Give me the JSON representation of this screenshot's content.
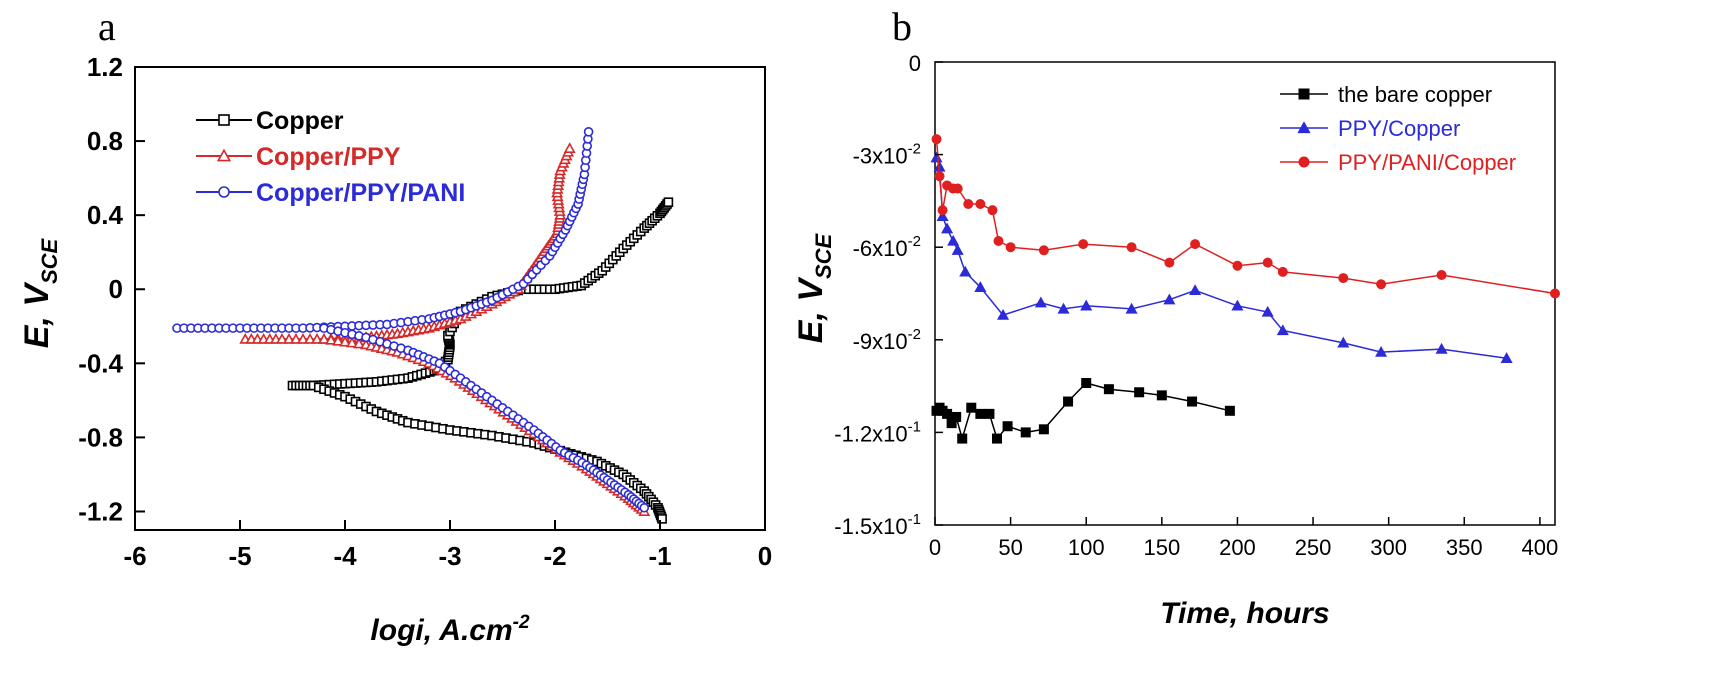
{
  "panels": {
    "a": {
      "letter": "a"
    },
    "b": {
      "letter": "b"
    }
  },
  "colors": {
    "copper": "#000000",
    "ppy": "#d42a2a",
    "pani": "#2b2bd8",
    "bare": "#000000",
    "ppy_b": "#2b2bd8",
    "pani_b": "#e02020"
  },
  "chart_data": [
    {
      "type": "line",
      "panel": "a",
      "title": "",
      "xlabel": {
        "main": "logi, A.cm",
        "sup": "-2"
      },
      "ylabel": {
        "main": "E, V",
        "sub": "SCE"
      },
      "xlim": [
        -6,
        0
      ],
      "ylim": [
        -1.3,
        1.2
      ],
      "x_ticks": [
        "-6",
        "-5",
        "-4",
        "-3",
        "-2",
        "-1",
        "0"
      ],
      "y_ticks": [
        "1.2",
        "0.8",
        "0.4",
        "0",
        "-0.4",
        "-0.8",
        "-1.2"
      ],
      "legend_position": "top-left",
      "series": [
        {
          "name": "Copper",
          "marker": "open-square",
          "branches": [
            [
              [
                -4.5,
                -0.52
              ],
              [
                -4.3,
                -0.52
              ],
              [
                -4.0,
                -0.51
              ],
              [
                -3.7,
                -0.5
              ],
              [
                -3.4,
                -0.48
              ],
              [
                -3.15,
                -0.44
              ],
              [
                -3.02,
                -0.38
              ],
              [
                -3.0,
                -0.3
              ],
              [
                -3.02,
                -0.25
              ],
              [
                -2.9,
                -0.12
              ],
              [
                -2.6,
                -0.04
              ],
              [
                -2.3,
                0.0
              ],
              [
                -2.0,
                0.0
              ],
              [
                -1.75,
                0.02
              ],
              [
                -1.55,
                0.1
              ],
              [
                -1.35,
                0.22
              ],
              [
                -1.15,
                0.33
              ],
              [
                -1.0,
                0.41
              ],
              [
                -0.92,
                0.47
              ]
            ],
            [
              [
                -4.3,
                -0.52
              ],
              [
                -4.0,
                -0.58
              ],
              [
                -3.7,
                -0.66
              ],
              [
                -3.4,
                -0.72
              ],
              [
                -3.0,
                -0.76
              ],
              [
                -2.6,
                -0.79
              ],
              [
                -2.2,
                -0.83
              ],
              [
                -1.9,
                -0.88
              ],
              [
                -1.6,
                -0.93
              ],
              [
                -1.35,
                -1.0
              ],
              [
                -1.15,
                -1.09
              ],
              [
                -1.02,
                -1.18
              ],
              [
                -0.98,
                -1.24
              ]
            ]
          ]
        },
        {
          "name": "Copper/PPY",
          "marker": "open-triangle",
          "branches": [
            [
              [
                -4.95,
                -0.27
              ],
              [
                -4.6,
                -0.27
              ],
              [
                -4.2,
                -0.27
              ],
              [
                -3.8,
                -0.26
              ],
              [
                -3.5,
                -0.24
              ],
              [
                -3.2,
                -0.21
              ],
              [
                -2.9,
                -0.16
              ],
              [
                -2.6,
                -0.08
              ],
              [
                -2.35,
                0.0
              ],
              [
                -2.2,
                0.12
              ],
              [
                -2.08,
                0.22
              ],
              [
                -1.98,
                0.3
              ],
              [
                -1.95,
                0.4
              ],
              [
                -1.98,
                0.52
              ],
              [
                -1.95,
                0.64
              ],
              [
                -1.86,
                0.76
              ]
            ],
            [
              [
                -4.2,
                -0.27
              ],
              [
                -3.8,
                -0.3
              ],
              [
                -3.5,
                -0.34
              ],
              [
                -3.2,
                -0.4
              ],
              [
                -2.95,
                -0.48
              ],
              [
                -2.7,
                -0.58
              ],
              [
                -2.45,
                -0.68
              ],
              [
                -2.2,
                -0.78
              ],
              [
                -1.95,
                -0.88
              ],
              [
                -1.7,
                -0.97
              ],
              [
                -1.5,
                -1.05
              ],
              [
                -1.3,
                -1.13
              ],
              [
                -1.15,
                -1.2
              ]
            ]
          ]
        },
        {
          "name": "Copper/PPY/PANI",
          "marker": "open-circle",
          "branches": [
            [
              [
                -5.6,
                -0.21
              ],
              [
                -5.2,
                -0.21
              ],
              [
                -4.8,
                -0.21
              ],
              [
                -4.4,
                -0.21
              ],
              [
                -4.0,
                -0.2
              ],
              [
                -3.6,
                -0.19
              ],
              [
                -3.2,
                -0.16
              ],
              [
                -2.9,
                -0.12
              ],
              [
                -2.6,
                -0.06
              ],
              [
                -2.3,
                0.03
              ],
              [
                -2.05,
                0.18
              ],
              [
                -1.9,
                0.32
              ],
              [
                -1.78,
                0.46
              ],
              [
                -1.72,
                0.62
              ],
              [
                -1.68,
                0.85
              ]
            ],
            [
              [
                -4.2,
                -0.21
              ],
              [
                -3.8,
                -0.26
              ],
              [
                -3.4,
                -0.33
              ],
              [
                -3.1,
                -0.4
              ],
              [
                -2.8,
                -0.52
              ],
              [
                -2.5,
                -0.64
              ],
              [
                -2.2,
                -0.76
              ],
              [
                -1.95,
                -0.87
              ],
              [
                -1.7,
                -0.95
              ],
              [
                -1.5,
                -1.03
              ],
              [
                -1.3,
                -1.11
              ],
              [
                -1.15,
                -1.18
              ]
            ]
          ]
        }
      ]
    },
    {
      "type": "line",
      "panel": "b",
      "title": "",
      "xlabel": "Time, hours",
      "ylabel": {
        "main": "E, V",
        "sub": "SCE"
      },
      "xlim": [
        0,
        410
      ],
      "ylim": [
        -0.15,
        0
      ],
      "x_ticks": [
        "0",
        "50",
        "100",
        "150",
        "200",
        "250",
        "300",
        "350",
        "400"
      ],
      "y_ticks": [
        {
          "v": 0,
          "main": "0",
          "exp": ""
        },
        {
          "v": -0.03,
          "main": "-3x10",
          "exp": "-2"
        },
        {
          "v": -0.06,
          "main": "-6x10",
          "exp": "-2"
        },
        {
          "v": -0.09,
          "main": "-9x10",
          "exp": "-2"
        },
        {
          "v": -0.12,
          "main": "-1.2x10",
          "exp": "-1"
        },
        {
          "v": -0.15,
          "main": "-1.5x10",
          "exp": "-1"
        }
      ],
      "legend_position": "top-right",
      "series": [
        {
          "name": "the bare copper",
          "marker": "filled-square",
          "points": [
            [
              1,
              -0.113
            ],
            [
              3,
              -0.112
            ],
            [
              5,
              -0.113
            ],
            [
              8,
              -0.114
            ],
            [
              11,
              -0.117
            ],
            [
              14,
              -0.115
            ],
            [
              18,
              -0.122
            ],
            [
              24,
              -0.112
            ],
            [
              30,
              -0.114
            ],
            [
              36,
              -0.114
            ],
            [
              41,
              -0.122
            ],
            [
              48,
              -0.118
            ],
            [
              60,
              -0.12
            ],
            [
              72,
              -0.119
            ],
            [
              88,
              -0.11
            ],
            [
              100,
              -0.104
            ],
            [
              115,
              -0.106
            ],
            [
              135,
              -0.107
            ],
            [
              150,
              -0.108
            ],
            [
              170,
              -0.11
            ],
            [
              195,
              -0.113
            ]
          ]
        },
        {
          "name": "PPY/Copper",
          "marker": "filled-triangle",
          "points": [
            [
              1,
              -0.031
            ],
            [
              3,
              -0.034
            ],
            [
              5,
              -0.05
            ],
            [
              8,
              -0.054
            ],
            [
              12,
              -0.058
            ],
            [
              15,
              -0.061
            ],
            [
              20,
              -0.068
            ],
            [
              30,
              -0.073
            ],
            [
              45,
              -0.082
            ],
            [
              70,
              -0.078
            ],
            [
              85,
              -0.08
            ],
            [
              100,
              -0.079
            ],
            [
              130,
              -0.08
            ],
            [
              155,
              -0.077
            ],
            [
              172,
              -0.074
            ],
            [
              200,
              -0.079
            ],
            [
              220,
              -0.081
            ],
            [
              230,
              -0.087
            ],
            [
              270,
              -0.091
            ],
            [
              295,
              -0.094
            ],
            [
              335,
              -0.093
            ],
            [
              378,
              -0.096
            ]
          ]
        },
        {
          "name": "PPY/PANI/Copper",
          "marker": "filled-circle",
          "points": [
            [
              1,
              -0.025
            ],
            [
              3,
              -0.037
            ],
            [
              5,
              -0.048
            ],
            [
              8,
              -0.04
            ],
            [
              12,
              -0.041
            ],
            [
              15,
              -0.041
            ],
            [
              22,
              -0.046
            ],
            [
              30,
              -0.046
            ],
            [
              38,
              -0.048
            ],
            [
              42,
              -0.058
            ],
            [
              50,
              -0.06
            ],
            [
              72,
              -0.061
            ],
            [
              98,
              -0.059
            ],
            [
              130,
              -0.06
            ],
            [
              155,
              -0.065
            ],
            [
              172,
              -0.059
            ],
            [
              200,
              -0.066
            ],
            [
              220,
              -0.065
            ],
            [
              230,
              -0.068
            ],
            [
              270,
              -0.07
            ],
            [
              295,
              -0.072
            ],
            [
              335,
              -0.069
            ],
            [
              410,
              -0.075
            ]
          ]
        }
      ]
    }
  ]
}
